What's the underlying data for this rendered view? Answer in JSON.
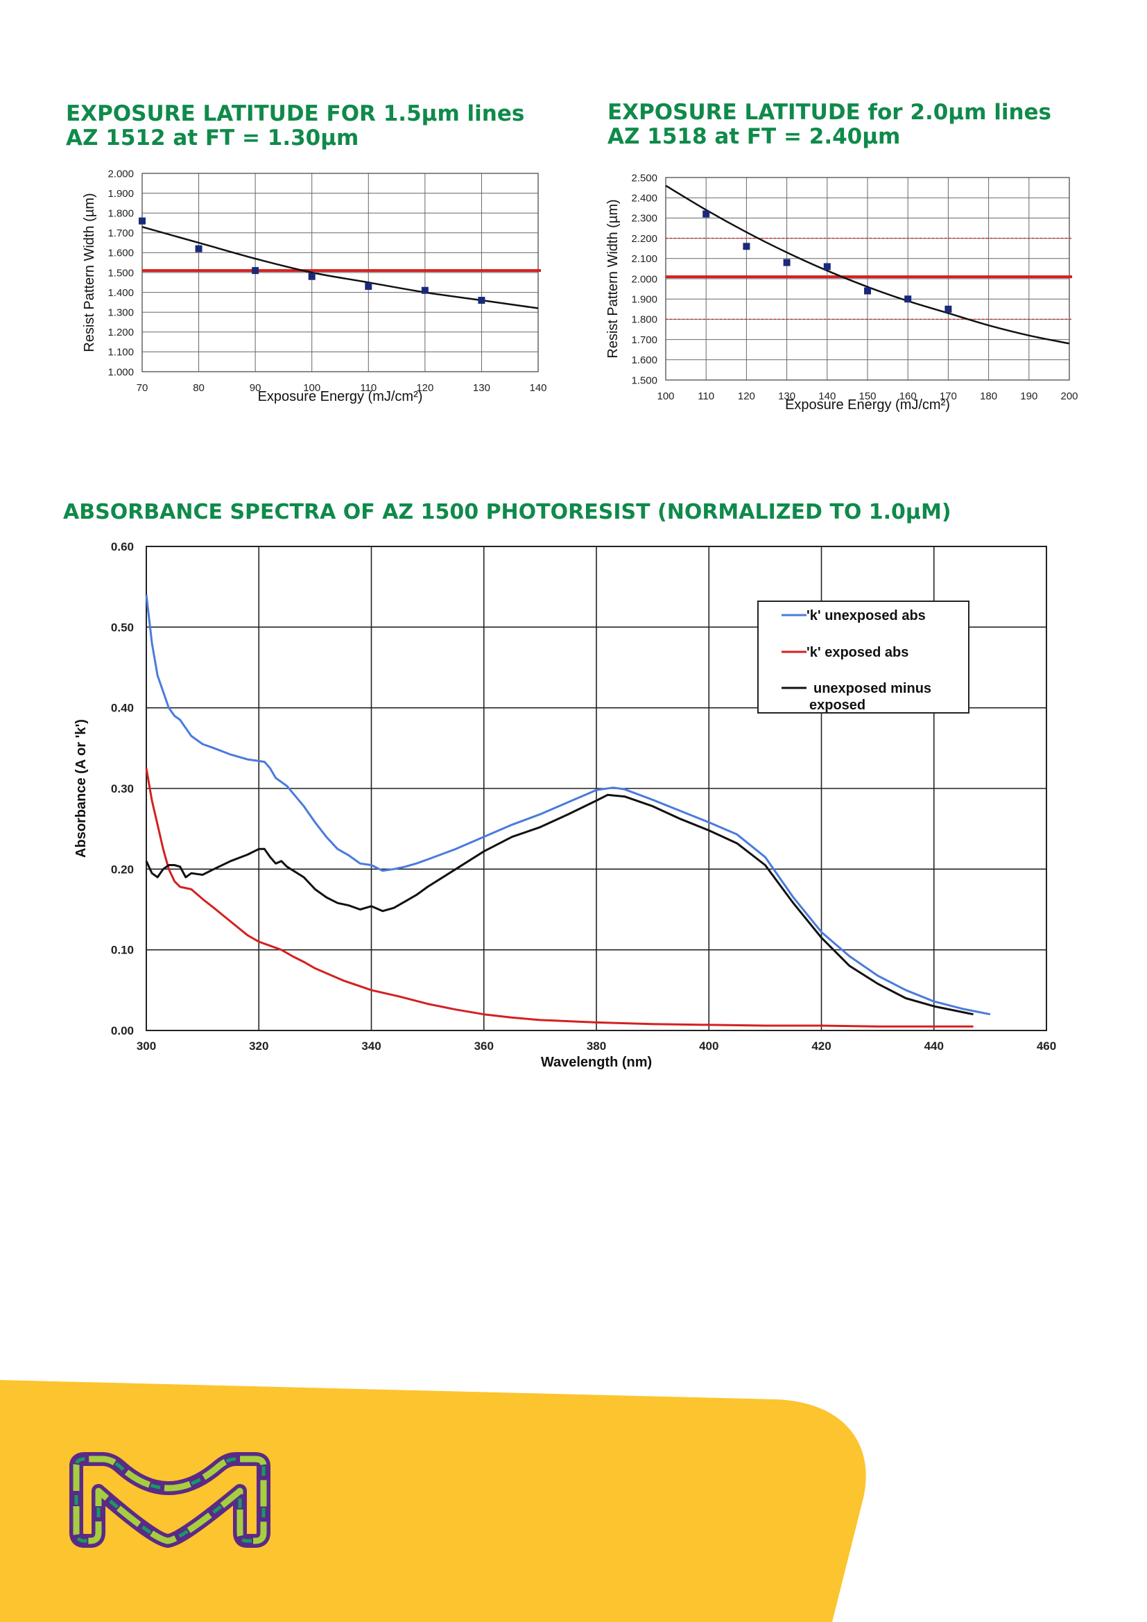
{
  "titles": {
    "chart1": [
      "EXPOSURE LATITUDE FOR 1.5µm lines",
      "AZ 1512 at FT = 1.30µm"
    ],
    "chart2": [
      "EXPOSURE LATITUDE for 2.0µm lines",
      "AZ 1518 at FT = 2.40µm"
    ],
    "chart3": "ABSORBANCE SPECTRA OF AZ 1500 PHOTORESIST (NORMALIZED TO 1.0µM)"
  },
  "colors": {
    "title": "#0f8a4a",
    "footer_yellow": "#fcc42e",
    "target_line": "#d42020",
    "points": "#1a2a7a"
  },
  "chart_data": [
    {
      "type": "scatter",
      "title": "",
      "xlabel": "Exposure Energy (mJ/cm²)",
      "ylabel": "Resist Pattern Width (µm)",
      "xlim": [
        70,
        140
      ],
      "ylim": [
        1.0,
        2.0
      ],
      "x_ticks": [
        70,
        80,
        90,
        100,
        110,
        120,
        130,
        140
      ],
      "y_ticks": [
        "1.000",
        "1.100",
        "1.200",
        "1.300",
        "1.400",
        "1.500",
        "1.600",
        "1.700",
        "1.800",
        "1.900",
        "2.000"
      ],
      "grid": true,
      "points": {
        "x": [
          70,
          80,
          90,
          100,
          110,
          120,
          130
        ],
        "y": [
          1.76,
          1.62,
          1.51,
          1.48,
          1.43,
          1.41,
          1.36
        ]
      },
      "fit": {
        "x": [
          70,
          80,
          90,
          100,
          110,
          120,
          130,
          140
        ],
        "y": [
          1.73,
          1.65,
          1.57,
          1.5,
          1.45,
          1.4,
          1.36,
          1.32
        ]
      },
      "target_lines": [
        {
          "y": 1.51,
          "style": "solid"
        }
      ]
    },
    {
      "type": "scatter",
      "title": "",
      "xlabel": "Exposure Energy (mJ/cm²)",
      "ylabel": "Resist Pattern Width (µm)",
      "xlim": [
        100,
        200
      ],
      "ylim": [
        1.5,
        2.5
      ],
      "x_ticks": [
        100,
        110,
        120,
        130,
        140,
        150,
        160,
        170,
        180,
        190,
        200
      ],
      "y_ticks": [
        "1.500",
        "1.600",
        "1.700",
        "1.800",
        "1.900",
        "2.000",
        "2.100",
        "2.200",
        "2.300",
        "2.400",
        "2.500"
      ],
      "grid": true,
      "points": {
        "x": [
          110,
          120,
          130,
          140,
          150,
          160,
          170
        ],
        "y": [
          2.32,
          2.16,
          2.08,
          2.06,
          1.94,
          1.9,
          1.85
        ]
      },
      "fit": {
        "x": [
          100,
          110,
          120,
          130,
          140,
          150,
          160,
          170,
          180,
          190,
          200
        ],
        "y": [
          2.46,
          2.34,
          2.23,
          2.13,
          2.04,
          1.96,
          1.89,
          1.83,
          1.77,
          1.72,
          1.68
        ]
      },
      "target_lines": [
        {
          "y": 2.01,
          "style": "solid"
        },
        {
          "y": 2.2,
          "style": "dashed"
        },
        {
          "y": 1.8,
          "style": "dashed"
        }
      ]
    },
    {
      "type": "line",
      "title": "",
      "xlabel": "Wavelength (nm)",
      "ylabel": "Absorbance (A or 'k')",
      "xlim": [
        300,
        460
      ],
      "ylim": [
        0,
        0.6
      ],
      "x_ticks": [
        300,
        320,
        340,
        360,
        380,
        400,
        420,
        440,
        460
      ],
      "y_ticks": [
        "0.00",
        "0.10",
        "0.20",
        "0.30",
        "0.40",
        "0.50",
        "0.60"
      ],
      "grid": true,
      "legend": "top-right",
      "series": [
        {
          "name": "'k' unexposed abs",
          "color": "#4a7bdc",
          "x": [
            300,
            300.5,
            301,
            302,
            303,
            304,
            305,
            306,
            307,
            308,
            310,
            312,
            315,
            318,
            320,
            321,
            322,
            323,
            325,
            328,
            330,
            332,
            334,
            336,
            338,
            340,
            342,
            344,
            346,
            348,
            350,
            355,
            360,
            365,
            370,
            375,
            380,
            383,
            385,
            390,
            395,
            400,
            405,
            410,
            415,
            420,
            425,
            430,
            435,
            440,
            445,
            450
          ],
          "y": [
            0.54,
            0.51,
            0.48,
            0.44,
            0.42,
            0.4,
            0.39,
            0.385,
            0.375,
            0.365,
            0.355,
            0.35,
            0.342,
            0.336,
            0.334,
            0.333,
            0.325,
            0.313,
            0.303,
            0.278,
            0.258,
            0.24,
            0.225,
            0.217,
            0.207,
            0.205,
            0.198,
            0.2,
            0.203,
            0.207,
            0.212,
            0.225,
            0.24,
            0.255,
            0.268,
            0.283,
            0.298,
            0.301,
            0.299,
            0.286,
            0.272,
            0.258,
            0.243,
            0.215,
            0.165,
            0.122,
            0.092,
            0.068,
            0.05,
            0.036,
            0.027,
            0.02
          ]
        },
        {
          "name": "'k' exposed abs",
          "color": "#d42020",
          "x": [
            300,
            301,
            302,
            303,
            304,
            305,
            306,
            308,
            310,
            312,
            315,
            318,
            320,
            322,
            324,
            326,
            328,
            330,
            335,
            340,
            345,
            350,
            355,
            360,
            365,
            370,
            380,
            390,
            400,
            410,
            420,
            430,
            440,
            447
          ],
          "y": [
            0.325,
            0.285,
            0.255,
            0.225,
            0.2,
            0.185,
            0.178,
            0.175,
            0.163,
            0.152,
            0.135,
            0.118,
            0.11,
            0.105,
            0.1,
            0.092,
            0.085,
            0.077,
            0.062,
            0.05,
            0.042,
            0.033,
            0.026,
            0.02,
            0.016,
            0.013,
            0.01,
            0.008,
            0.007,
            0.006,
            0.006,
            0.005,
            0.005,
            0.005
          ]
        },
        {
          "name": "unexposed minus exposed",
          "color": "#111111",
          "x": [
            300,
            301,
            302,
            303,
            304,
            305,
            306,
            307,
            308,
            310,
            312,
            315,
            318,
            320,
            321,
            322,
            323,
            324,
            325,
            328,
            330,
            332,
            334,
            336,
            338,
            340,
            342,
            344,
            346,
            348,
            350,
            355,
            360,
            365,
            370,
            375,
            380,
            382,
            385,
            390,
            395,
            400,
            405,
            410,
            415,
            420,
            425,
            430,
            435,
            440,
            447
          ],
          "y": [
            0.21,
            0.195,
            0.19,
            0.2,
            0.205,
            0.205,
            0.203,
            0.19,
            0.195,
            0.193,
            0.2,
            0.21,
            0.218,
            0.225,
            0.225,
            0.215,
            0.207,
            0.21,
            0.203,
            0.19,
            0.175,
            0.165,
            0.158,
            0.155,
            0.15,
            0.154,
            0.148,
            0.152,
            0.16,
            0.168,
            0.178,
            0.2,
            0.222,
            0.24,
            0.252,
            0.268,
            0.285,
            0.292,
            0.29,
            0.278,
            0.262,
            0.248,
            0.232,
            0.205,
            0.158,
            0.115,
            0.08,
            0.058,
            0.04,
            0.03,
            0.02
          ]
        }
      ]
    }
  ]
}
